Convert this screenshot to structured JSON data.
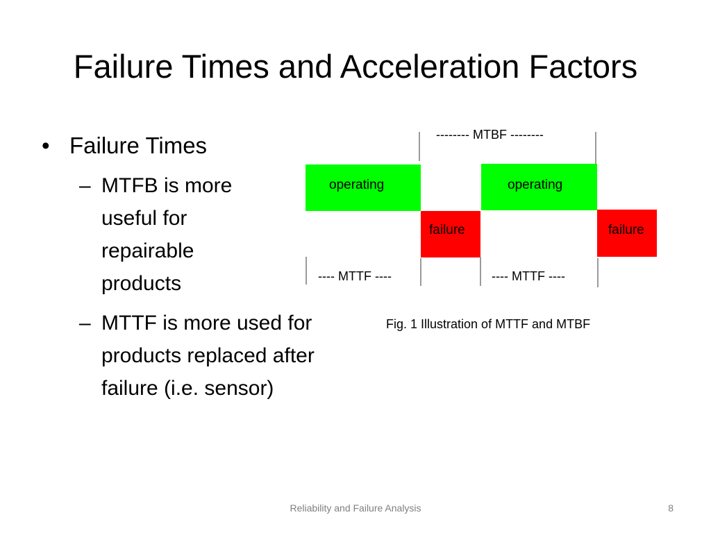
{
  "slide": {
    "title": "Failure Times and Acceleration Factors",
    "bullets": {
      "main": "Failure Times",
      "sub": [
        "MTFB is more useful for repairable products",
        "MTTF is more used for products replaced after failure (i.e. sensor)"
      ]
    },
    "diagram": {
      "mtbf_label": "-------- MTBF --------",
      "mttf_label_1": "---- MTTF ----",
      "mttf_label_2": "---- MTTF ----",
      "operating_1": "operating",
      "operating_2": "operating",
      "failure_1": "failure",
      "failure_2": "failure",
      "caption": "Fig. 1 Illustration of MTTF and MTBF",
      "colors": {
        "operating": "#00ff00",
        "failure": "#ff0000",
        "lines": "#9a9a9a"
      }
    },
    "footer": "Reliability and Failure Analysis",
    "page_number": "8"
  }
}
